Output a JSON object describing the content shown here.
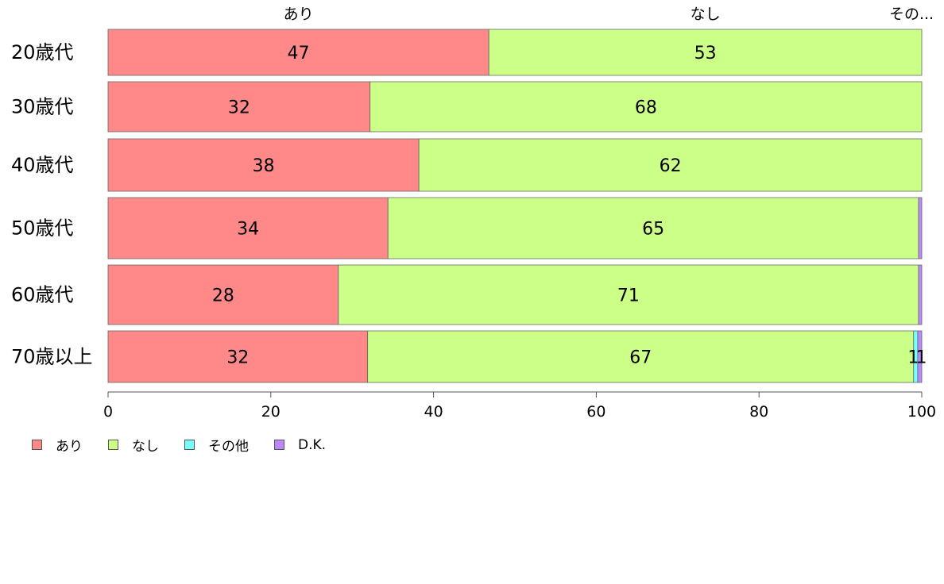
{
  "chart_data": {
    "type": "bar",
    "orientation": "horizontal",
    "stacked": true,
    "categories": [
      "20歳代",
      "30歳代",
      "40歳代",
      "50歳代",
      "60歳代",
      "70歳以上"
    ],
    "series": [
      {
        "name": "あり",
        "color": "#ff8888",
        "values": [
          46.8,
          32.2,
          38.2,
          34.4,
          28.3,
          31.9
        ]
      },
      {
        "name": "なし",
        "color": "#ccff88",
        "values": [
          53.2,
          67.8,
          61.8,
          65.2,
          71.3,
          67.1
        ]
      },
      {
        "name": "その他",
        "color": "#77ffff",
        "values": [
          0,
          0,
          0,
          0,
          0,
          0.5
        ]
      },
      {
        "name": "D.K.",
        "color": "#bb88ff",
        "values": [
          0,
          0,
          0,
          0.4,
          0.4,
          0.5
        ]
      }
    ],
    "data_labels": [
      [
        "47",
        "53",
        "",
        ""
      ],
      [
        "32",
        "68",
        "",
        ""
      ],
      [
        "38",
        "62",
        "",
        ""
      ],
      [
        "34",
        "65",
        "",
        ""
      ],
      [
        "28",
        "71",
        "",
        ""
      ],
      [
        "32",
        "67",
        "1",
        "1"
      ]
    ],
    "top_labels": [
      "あり",
      "なし",
      "その..."
    ],
    "xlim": [
      0,
      100
    ],
    "xticks": [
      "0",
      "20",
      "40",
      "60",
      "80",
      "100"
    ],
    "legend_position": "bottom-left",
    "grid": false
  }
}
